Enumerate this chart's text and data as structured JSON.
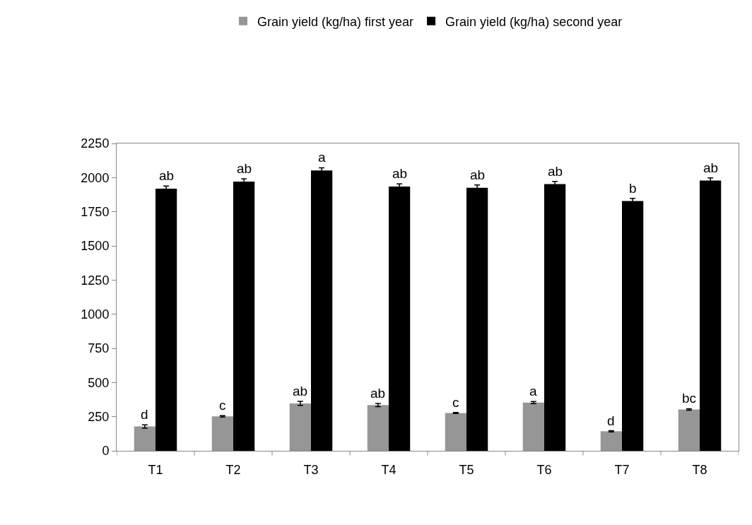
{
  "chart_data": {
    "type": "bar",
    "categories": [
      "T1",
      "T2",
      "T3",
      "T4",
      "T5",
      "T6",
      "T7",
      "T8"
    ],
    "series": [
      {
        "name": "Grain yield (kg/ha) first year",
        "color": "#969696",
        "values": [
          178,
          252,
          347,
          335,
          277,
          353,
          143,
          303
        ],
        "errors": [
          12,
          5,
          15,
          12,
          4,
          8,
          4,
          5
        ],
        "value_labels": [
          "d",
          "c",
          "ab",
          "ab",
          "c",
          "a",
          "d",
          "bc"
        ]
      },
      {
        "name": "Grain yield (kg/ha) second year",
        "color": "#000000",
        "values": [
          1919,
          1971,
          2052,
          1934,
          1926,
          1952,
          1828,
          1978
        ],
        "errors": [
          20,
          20,
          20,
          20,
          20,
          20,
          20,
          20
        ],
        "value_labels": [
          "ab",
          "ab",
          "a",
          "ab",
          "ab",
          "ab",
          "b",
          "ab"
        ]
      }
    ],
    "ylim": [
      0,
      2250
    ],
    "yticks": [
      0,
      250,
      500,
      750,
      1000,
      1250,
      1500,
      1750,
      2000,
      2250
    ],
    "legend": "top"
  }
}
